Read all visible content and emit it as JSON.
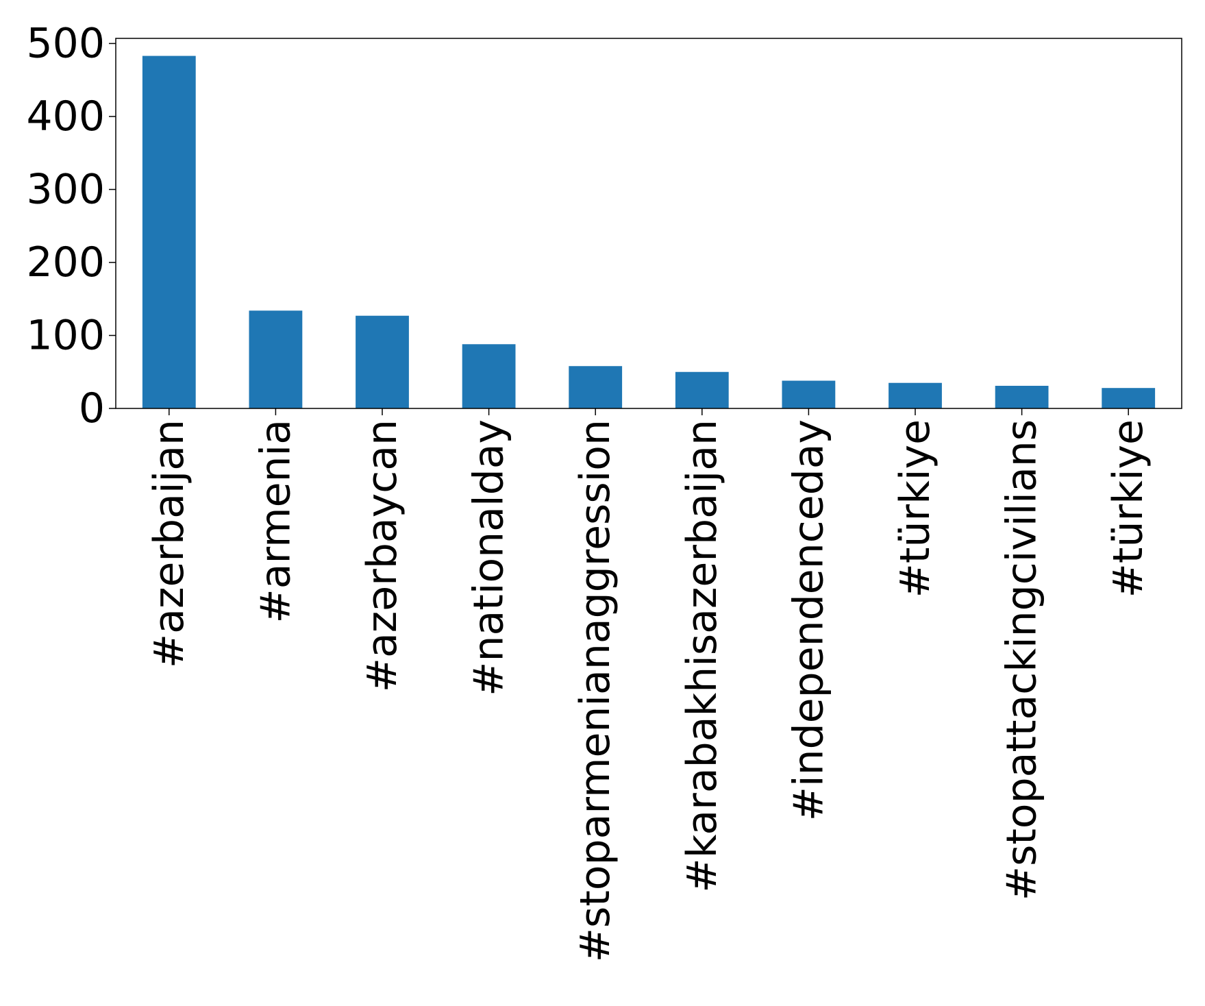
{
  "chart_data": {
    "type": "bar",
    "title": "",
    "xlabel": "",
    "ylabel": "",
    "categories": [
      "#azerbaijan",
      "#armenia",
      "#azərbaycan",
      "#nationalday",
      "#stoparmenianaggression",
      "#karabakhisazerbaijan",
      "#independenceday",
      "#türkiye",
      "#stopattackingcivilians",
      "#türkiye"
    ],
    "values": [
      483,
      134,
      127,
      88,
      58,
      50,
      38,
      35,
      31,
      28
    ],
    "ylim": [
      0,
      507
    ],
    "yticks": [
      "0",
      "100",
      "200",
      "300",
      "400",
      "500"
    ],
    "bar_color": "#1f77b4",
    "grid": false,
    "legend": "none"
  }
}
